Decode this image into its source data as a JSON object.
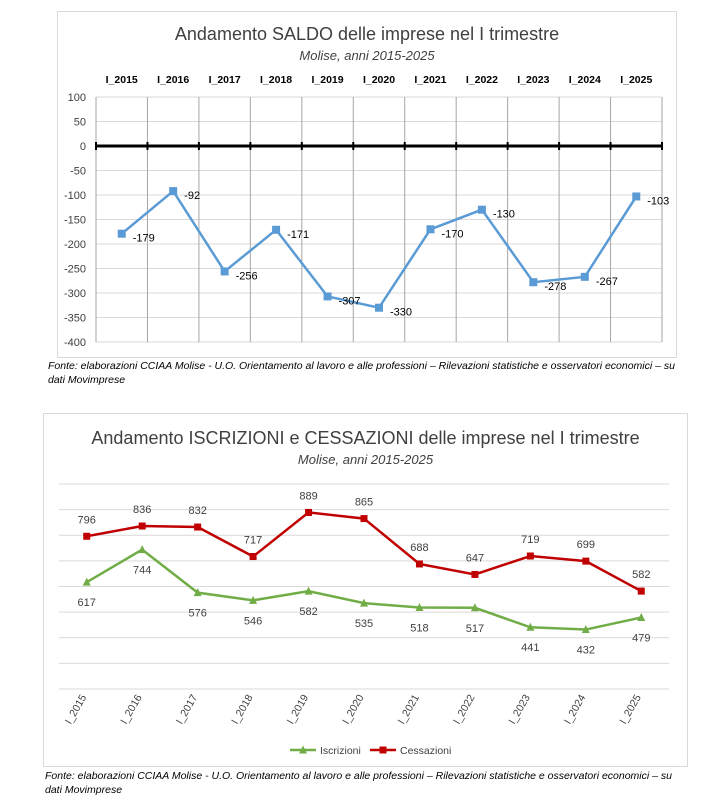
{
  "chart1": {
    "title": "Andamento SALDO delle imprese nel I trimestre",
    "subtitle": "Molise, anni 2015-2025"
  },
  "chart2": {
    "title": "Andamento ISCRIZIONI e CESSAZIONI delle imprese nel I trimestre",
    "subtitle": "Molise, anni 2015-2025"
  },
  "source1": "Fonte: elaborazioni CCIAA Molise - U.O. Orientamento al lavoro e alle professioni – Rilevazioni statistiche e osservatori economici – su dati Movimprese",
  "source2": "Fonte: elaborazioni CCIAA Molise - U.O. Orientamento al lavoro e alle professioni – Rilevazioni statistiche e osservatori economici – su dati Movimprese",
  "colors": {
    "saldo": "#5b9bd5",
    "iscrizioni": "#70ad47",
    "cessazioni": "#c00000",
    "axis": "#000000",
    "grid": "#d9d9d9"
  },
  "chart_data": [
    {
      "type": "line",
      "title": "Andamento SALDO delle imprese nel I trimestre",
      "subtitle": "Molise, anni 2015-2025",
      "categories": [
        "I_2015",
        "I_2016",
        "I_2017",
        "I_2018",
        "I_2019",
        "I_2020",
        "I_2021",
        "I_2022",
        "I_2023",
        "I_2024",
        "I_2025"
      ],
      "series": [
        {
          "values": [
            -179,
            -92,
            -256,
            -171,
            -307,
            -330,
            -170,
            -130,
            -278,
            -267,
            -103
          ],
          "color": "#5b9bd5",
          "marker": "square"
        }
      ],
      "ylim": [
        -400,
        100
      ],
      "yticks": [
        100,
        50,
        0,
        -50,
        -100,
        -150,
        -200,
        -250,
        -300,
        -350,
        -400
      ],
      "category_axis_position": "top",
      "grid": true,
      "data_labels": true
    },
    {
      "type": "line",
      "title": "Andamento ISCRIZIONI e CESSAZIONI delle imprese nel I trimestre",
      "subtitle": "Molise, anni 2015-2025",
      "categories": [
        "I_2015",
        "I_2016",
        "I_2017",
        "I_2018",
        "I_2019",
        "I_2020",
        "I_2021",
        "I_2022",
        "I_2023",
        "I_2024",
        "I_2025"
      ],
      "series": [
        {
          "name": "Iscrizioni",
          "values": [
            617,
            744,
            576,
            546,
            582,
            535,
            518,
            517,
            441,
            432,
            479
          ],
          "color": "#70ad47",
          "marker": "triangle"
        },
        {
          "name": "Cessazioni",
          "values": [
            796,
            836,
            832,
            717,
            889,
            865,
            688,
            647,
            719,
            699,
            582
          ],
          "color": "#c00000",
          "marker": "square"
        }
      ],
      "ylim": [
        200,
        1000
      ],
      "y_tick_labels_visible": false,
      "legend": "bottom",
      "grid": true,
      "data_labels": true
    }
  ]
}
